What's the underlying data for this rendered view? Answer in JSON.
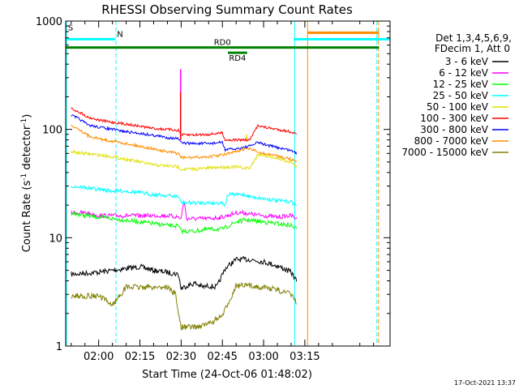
{
  "chart_data": {
    "type": "line",
    "title": "RHESSI Observing Summary Count Rates",
    "xlabel": "Start Time (24-Oct-06 01:48:02)",
    "ylabel": "Count Rate (s⁻¹ detector⁻¹)",
    "ylabel_parts": [
      "Count Rate (s",
      "-1",
      " detector",
      "-1",
      ")"
    ],
    "yscale": "log",
    "ylim": [
      1,
      1000
    ],
    "xlim_minutes": [
      108,
      226
    ],
    "x_tick_labels": [
      {
        "t": 120,
        "label": "02:00"
      },
      {
        "t": 135,
        "label": "02:15"
      },
      {
        "t": 150,
        "label": "02:30"
      },
      {
        "t": 165,
        "label": "02:45"
      },
      {
        "t": 180,
        "label": "03:00"
      },
      {
        "t": 195,
        "label": "03:15"
      }
    ],
    "y_tick_labels": [
      {
        "v": 1,
        "label": "1"
      },
      {
        "v": 10,
        "label": "10"
      },
      {
        "v": 100,
        "label": "100"
      },
      {
        "v": 1000,
        "label": "1000"
      }
    ],
    "legend_header": [
      "Det 1,3,4,5,6,9,",
      "FDecim 1, Att 0"
    ],
    "timestamp": "17-Oct-2021 13:37",
    "flags": [
      {
        "label": "S",
        "color": "#ff8c00",
        "x0": 108,
        "x1": 108,
        "y": 780
      },
      {
        "label": "N",
        "color": "#00ffff",
        "x0": 108,
        "x1": 126,
        "y": 680
      },
      {
        "label": "",
        "color": "#00ffff",
        "x0": 191,
        "x1": 226,
        "y": 680
      },
      {
        "label": "",
        "color": "#ff8c00",
        "x0": 196,
        "x1": 222,
        "y": 780
      },
      {
        "label": "RD0",
        "color": "#008000",
        "x0": 108,
        "x1": 222,
        "y": 570
      },
      {
        "label": "RD4",
        "color": "#008000",
        "x0": 167,
        "x1": 174,
        "y": 510
      }
    ],
    "vlines": [
      {
        "t": 108.3,
        "color": "#00ffff",
        "style": "solid"
      },
      {
        "t": 126.3,
        "color": "#00ffff",
        "style": "dashed"
      },
      {
        "t": 191.3,
        "color": "#00ffff",
        "style": "solid"
      },
      {
        "t": 196.0,
        "color": "#ff8c00",
        "style": "solid"
      },
      {
        "t": 221.2,
        "color": "#00ffff",
        "style": "dashed"
      },
      {
        "t": 221.8,
        "color": "#ff8c00",
        "style": "dashed"
      }
    ],
    "series": [
      {
        "name": "3 - 6 keV",
        "color": "#000000",
        "points": [
          [
            110,
            4.6
          ],
          [
            115,
            4.7
          ],
          [
            120,
            4.8
          ],
          [
            125,
            5.0
          ],
          [
            130,
            5.2
          ],
          [
            135,
            5.4
          ],
          [
            140,
            5.0
          ],
          [
            145,
            4.8
          ],
          [
            149,
            4.6
          ],
          [
            150,
            3.4
          ],
          [
            152,
            3.6
          ],
          [
            155,
            3.8
          ],
          [
            158,
            3.5
          ],
          [
            160,
            3.6
          ],
          [
            163,
            3.5
          ],
          [
            166,
            5.2
          ],
          [
            170,
            6.3
          ],
          [
            175,
            6.3
          ],
          [
            180,
            6.0
          ],
          [
            185,
            5.5
          ],
          [
            190,
            4.8
          ],
          [
            192,
            4.0
          ]
        ]
      },
      {
        "name": "6 - 12 keV",
        "color": "#ff00ff",
        "points": [
          [
            110,
            17
          ],
          [
            115,
            17
          ],
          [
            120,
            16
          ],
          [
            125,
            16
          ],
          [
            130,
            16
          ],
          [
            135,
            16
          ],
          [
            140,
            16
          ],
          [
            145,
            16
          ],
          [
            149,
            15.5
          ],
          [
            150,
            15
          ],
          [
            151,
            22
          ],
          [
            152,
            15
          ],
          [
            155,
            15
          ],
          [
            160,
            15
          ],
          [
            165,
            15.5
          ],
          [
            170,
            17
          ],
          [
            173,
            17
          ],
          [
            175,
            16.5
          ],
          [
            180,
            16
          ],
          [
            185,
            15.5
          ],
          [
            190,
            16
          ],
          [
            192,
            15
          ]
        ]
      },
      {
        "name": "12 - 25 keV",
        "color": "#00ff00",
        "points": [
          [
            110,
            17
          ],
          [
            115,
            16
          ],
          [
            120,
            15.5
          ],
          [
            125,
            15
          ],
          [
            130,
            14.5
          ],
          [
            135,
            14
          ],
          [
            140,
            13.5
          ],
          [
            145,
            13
          ],
          [
            149,
            12.8
          ],
          [
            150,
            11.5
          ],
          [
            152,
            11.5
          ],
          [
            155,
            11.5
          ],
          [
            160,
            12
          ],
          [
            165,
            12
          ],
          [
            170,
            14
          ],
          [
            173,
            14.5
          ],
          [
            175,
            14.5
          ],
          [
            180,
            14
          ],
          [
            185,
            13.5
          ],
          [
            190,
            13
          ],
          [
            192,
            12
          ]
        ]
      },
      {
        "name": "25 - 50 keV",
        "color": "#00ffff",
        "points": [
          [
            110,
            30
          ],
          [
            115,
            29
          ],
          [
            120,
            28
          ],
          [
            125,
            27
          ],
          [
            130,
            27
          ],
          [
            135,
            26
          ],
          [
            140,
            25
          ],
          [
            145,
            24.5
          ],
          [
            149,
            24
          ],
          [
            150,
            21
          ],
          [
            155,
            21
          ],
          [
            160,
            21
          ],
          [
            165,
            21
          ],
          [
            166,
            20
          ],
          [
            167,
            25
          ],
          [
            170,
            25
          ],
          [
            173,
            25
          ],
          [
            175,
            24
          ],
          [
            180,
            23
          ],
          [
            185,
            22
          ],
          [
            190,
            21.5
          ],
          [
            192,
            20
          ]
        ]
      },
      {
        "name": "50 - 100 keV",
        "color": "#e0e000",
        "points": [
          [
            110,
            62
          ],
          [
            115,
            60
          ],
          [
            120,
            58
          ],
          [
            125,
            56
          ],
          [
            130,
            53
          ],
          [
            135,
            50
          ],
          [
            140,
            47
          ],
          [
            145,
            46
          ],
          [
            149,
            45
          ],
          [
            150,
            43
          ],
          [
            155,
            43
          ],
          [
            160,
            44
          ],
          [
            165,
            45
          ],
          [
            170,
            45
          ],
          [
            173,
            44
          ],
          [
            175,
            44
          ],
          [
            178,
            59
          ],
          [
            180,
            58
          ],
          [
            185,
            54
          ],
          [
            190,
            50
          ],
          [
            192,
            45
          ]
        ]
      },
      {
        "name": "100 - 300 keV",
        "color": "#ff0000",
        "points": [
          [
            110,
            155
          ],
          [
            113,
            145
          ],
          [
            116,
            130
          ],
          [
            120,
            122
          ],
          [
            125,
            116
          ],
          [
            130,
            112
          ],
          [
            135,
            107
          ],
          [
            140,
            102
          ],
          [
            145,
            100
          ],
          [
            149,
            98
          ],
          [
            150,
            89
          ],
          [
            155,
            89
          ],
          [
            160,
            90
          ],
          [
            165,
            93
          ],
          [
            166,
            80
          ],
          [
            170,
            80
          ],
          [
            175,
            80
          ],
          [
            178,
            110
          ],
          [
            180,
            105
          ],
          [
            185,
            100
          ],
          [
            190,
            95
          ],
          [
            192,
            90
          ]
        ]
      },
      {
        "name": "300 - 800 keV",
        "color": "#0000ff",
        "points": [
          [
            110,
            135
          ],
          [
            113,
            125
          ],
          [
            116,
            110
          ],
          [
            120,
            105
          ],
          [
            125,
            100
          ],
          [
            130,
            95
          ],
          [
            135,
            92
          ],
          [
            140,
            88
          ],
          [
            145,
            84
          ],
          [
            149,
            82
          ],
          [
            150,
            75
          ],
          [
            155,
            74
          ],
          [
            160,
            74
          ],
          [
            165,
            76
          ],
          [
            166,
            65
          ],
          [
            170,
            66
          ],
          [
            175,
            70
          ],
          [
            178,
            76
          ],
          [
            180,
            73
          ],
          [
            185,
            68
          ],
          [
            190,
            64
          ],
          [
            192,
            60
          ]
        ]
      },
      {
        "name": "800 - 7000 keV",
        "color": "#ff8c00",
        "points": [
          [
            110,
            110
          ],
          [
            113,
            100
          ],
          [
            116,
            88
          ],
          [
            120,
            82
          ],
          [
            125,
            78
          ],
          [
            130,
            74
          ],
          [
            135,
            70
          ],
          [
            140,
            66
          ],
          [
            145,
            62
          ],
          [
            149,
            60
          ],
          [
            150,
            55
          ],
          [
            155,
            55
          ],
          [
            160,
            56
          ],
          [
            165,
            58
          ],
          [
            170,
            62
          ],
          [
            173,
            66
          ],
          [
            175,
            66
          ],
          [
            178,
            62
          ],
          [
            180,
            60
          ],
          [
            185,
            57
          ],
          [
            190,
            53
          ],
          [
            192,
            50
          ]
        ]
      },
      {
        "name": "7000 - 15000 keV",
        "color": "#808000",
        "points": [
          [
            110,
            2.9
          ],
          [
            115,
            2.9
          ],
          [
            120,
            2.9
          ],
          [
            125,
            2.4
          ],
          [
            130,
            3.5
          ],
          [
            135,
            3.5
          ],
          [
            140,
            3.5
          ],
          [
            145,
            3.5
          ],
          [
            148,
            3.0
          ],
          [
            149,
            2.0
          ],
          [
            150,
            1.5
          ],
          [
            155,
            1.5
          ],
          [
            160,
            1.6
          ],
          [
            165,
            1.9
          ],
          [
            170,
            3.6
          ],
          [
            175,
            3.6
          ],
          [
            180,
            3.5
          ],
          [
            185,
            3.3
          ],
          [
            190,
            3.0
          ],
          [
            192,
            2.5
          ]
        ]
      }
    ],
    "spikes": [
      {
        "t": 149.8,
        "to": 360,
        "color": "#ff00ff"
      },
      {
        "t": 149.8,
        "to": 220,
        "color": "#ff0000"
      },
      {
        "t": 173.8,
        "to": 90,
        "color": "#e0e000"
      }
    ]
  }
}
